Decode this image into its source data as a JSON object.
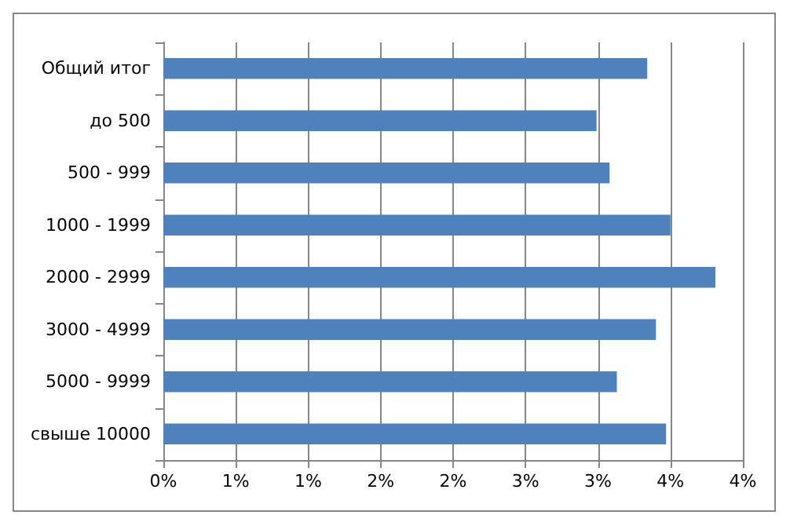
{
  "chart_data": {
    "type": "bar",
    "orientation": "horizontal",
    "categories": [
      "Общий итог",
      "до 500",
      "500 - 999",
      "1000 - 1999",
      "2000 - 2999",
      "3000 - 4999",
      "5000 - 9999",
      "свыше 10000"
    ],
    "values": [
      3.34,
      2.99,
      3.08,
      3.5,
      3.81,
      3.4,
      3.13,
      3.47
    ],
    "color": "#4f81bd",
    "xlim": [
      0,
      4
    ],
    "xticks": [
      {
        "value": 0,
        "label": "0%"
      },
      {
        "value": 0.5,
        "label": "1%"
      },
      {
        "value": 1,
        "label": "1%"
      },
      {
        "value": 1.5,
        "label": "2%"
      },
      {
        "value": 2,
        "label": "2%"
      },
      {
        "value": 2.5,
        "label": "3%"
      },
      {
        "value": 3,
        "label": "3%"
      },
      {
        "value": 3.5,
        "label": "4%"
      },
      {
        "value": 4,
        "label": "4%"
      }
    ],
    "grid": "x"
  }
}
